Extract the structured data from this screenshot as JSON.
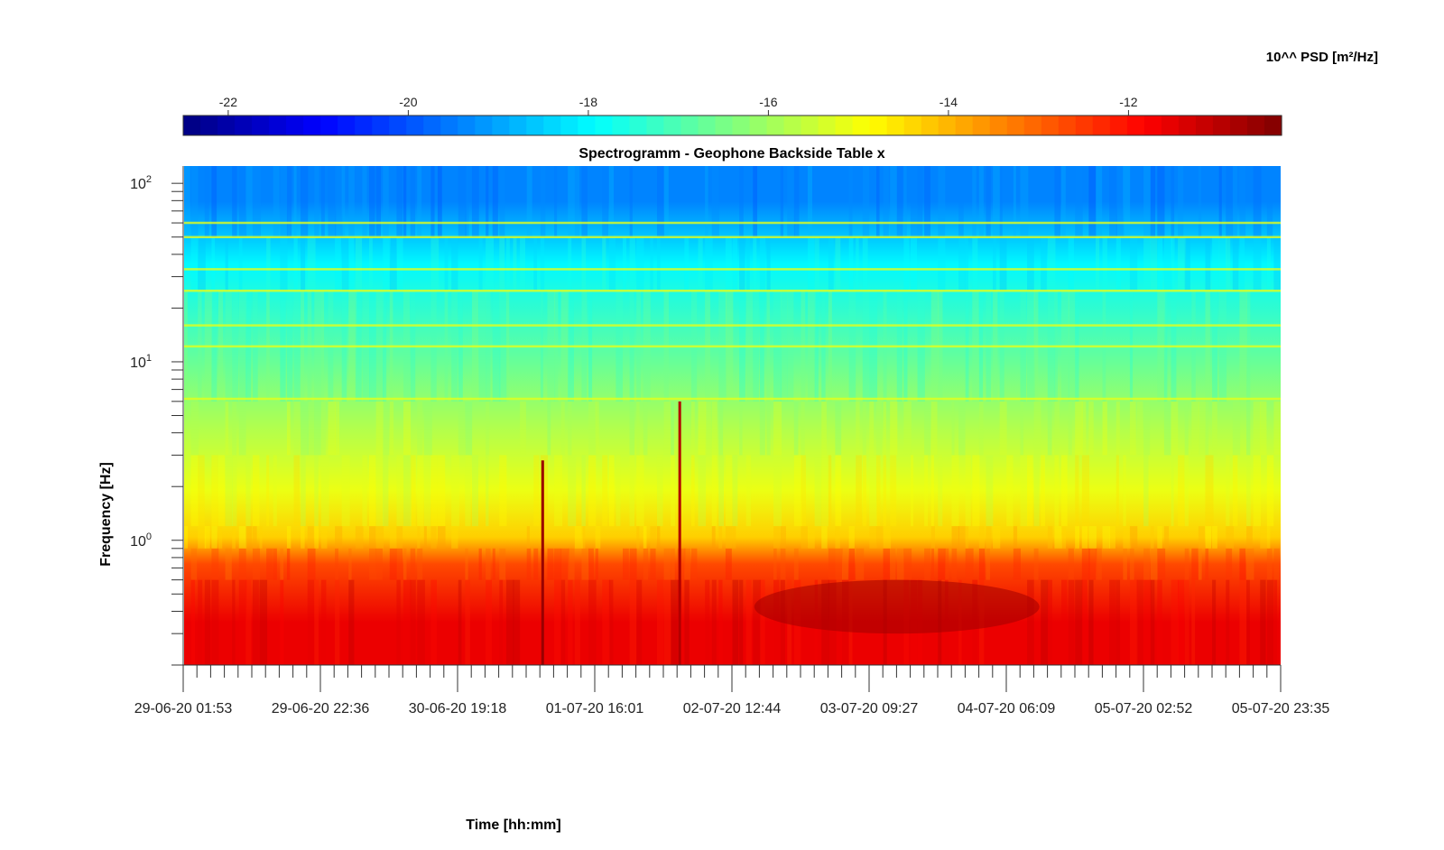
{
  "figure": {
    "colorbar_title": "10^^ PSD [m²/Hz]"
  },
  "chart_data": {
    "type": "heatmap",
    "title": "Spectrogramm - Geophone Backside Table x",
    "xlabel": "Time [hh:mm]",
    "ylabel": "Frequency [Hz]",
    "colormap": "jet",
    "colorbar": {
      "title": "10^^ PSD [m²/Hz]",
      "range": [
        -22.5,
        -10.3
      ],
      "ticks": [
        -22,
        -20,
        -18,
        -16,
        -14,
        -12
      ],
      "position": "top"
    },
    "x_axis": {
      "type": "time",
      "range": [
        "29-06-20 01:53",
        "05-07-20 23:35"
      ],
      "tick_labels": [
        "29-06-20 01:53",
        "29-06-20 22:36",
        "30-06-20 19:18",
        "01-07-20 16:01",
        "02-07-20 12:44",
        "03-07-20 09:27",
        "04-07-20 06:09",
        "05-07-20 02:52",
        "05-07-20 23:35"
      ]
    },
    "y_axis": {
      "scale": "log",
      "range": [
        0.2,
        125
      ],
      "tick_labels": [
        {
          "base": "10",
          "exp": "0"
        },
        {
          "base": "10",
          "exp": "1"
        },
        {
          "base": "10",
          "exp": "2"
        }
      ]
    },
    "features": {
      "rows": [
        {
          "freq_range": [
            0.2,
            0.6
          ],
          "level": -11.6
        },
        {
          "freq_range": [
            0.6,
            0.9
          ],
          "level": -12.7
        },
        {
          "freq_range": [
            0.9,
            1.2
          ],
          "level": -14.3
        },
        {
          "freq_range": [
            1.2,
            3.0
          ],
          "level": -15.1
        },
        {
          "freq_range": [
            3.0,
            6.0
          ],
          "level": -15.8
        },
        {
          "freq_range": [
            6.0,
            25.0
          ],
          "level": -16.9
        },
        {
          "freq_range": [
            25.0,
            50.0
          ],
          "level": -18.0
        },
        {
          "freq_range": [
            50.0,
            125.0
          ],
          "level": -19.4
        }
      ],
      "harmonic_lines_hz": [
        6.2,
        12.2,
        16.0,
        25.0,
        33.0,
        50.0,
        60.0
      ],
      "transients": [
        {
          "time_fraction": 0.327,
          "freq_top_hz": 2.8,
          "level": -10.6
        },
        {
          "time_fraction": 0.452,
          "freq_top_hz": 6.0,
          "level": -10.9
        }
      ],
      "peak_zone": {
        "time_fraction_range": [
          0.52,
          0.78
        ],
        "freq_range": [
          0.3,
          0.6
        ],
        "level": -10.7
      }
    }
  }
}
